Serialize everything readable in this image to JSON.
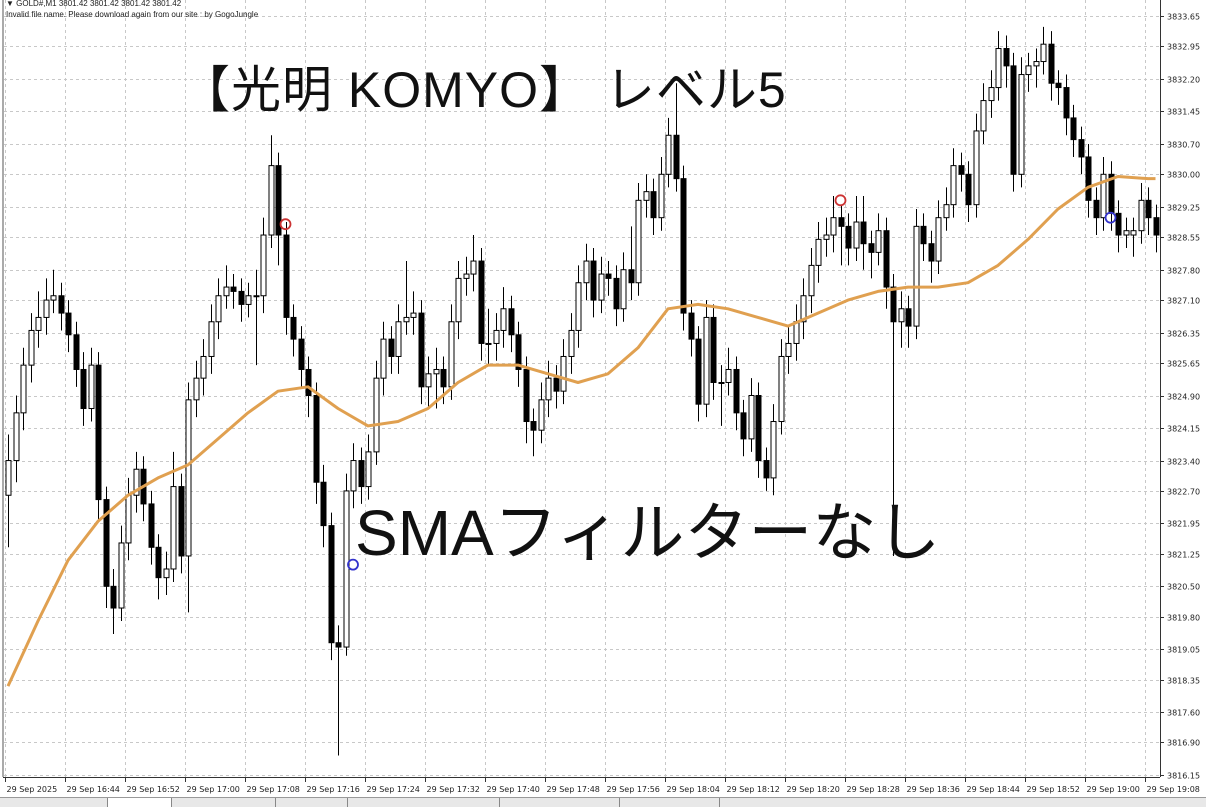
{
  "header": {
    "symbol_line": "▼ GOLD#,M1  3801.42 3801.42 3801.42 3801.42",
    "notice": "Invalid file name. Please download again from our site : by GogoJungle"
  },
  "overlay": {
    "title": "【光明 KOMYO】 レベル5",
    "subtitle": "SMAフィルターなし"
  },
  "colors": {
    "sma": "#e0a050",
    "bull_body": "#ffffff",
    "bear_body": "#000000",
    "sell_signal": "#cc3333",
    "buy_signal": "#3333cc",
    "grid": "#c8c8c8"
  },
  "chart_data": {
    "type": "candlestick",
    "symbol": "GOLD#",
    "timeframe": "M1",
    "grid": true,
    "ylim": [
      3816.15,
      3833.65
    ],
    "y_tick_labels": [
      "3833.65",
      "3832.95",
      "3832.20",
      "3831.45",
      "3830.70",
      "3830.00",
      "3829.25",
      "3828.55",
      "3827.80",
      "3827.10",
      "3826.35",
      "3825.65",
      "3824.90",
      "3824.15",
      "3823.40",
      "3822.70",
      "3821.95",
      "3821.25",
      "3820.50",
      "3819.80",
      "3819.05",
      "3818.35",
      "3817.60",
      "3816.90",
      "3816.15"
    ],
    "x_tick_labels": [
      "29 Sep 2025",
      "29 Sep 16:44",
      "29 Sep 16:52",
      "29 Sep 17:00",
      "29 Sep 17:08",
      "29 Sep 17:16",
      "29 Sep 17:24",
      "29 Sep 17:32",
      "29 Sep 17:40",
      "29 Sep 17:48",
      "29 Sep 17:56",
      "29 Sep 18:04",
      "29 Sep 18:12",
      "29 Sep 18:20",
      "29 Sep 18:28",
      "29 Sep 18:36",
      "29 Sep 18:44",
      "29 Sep 18:52",
      "29 Sep 19:00",
      "29 Sep 19:08"
    ],
    "first_candle_time": "16:36",
    "ohlc": [
      [
        3822.6,
        3824.0,
        3821.4,
        3823.4
      ],
      [
        3823.4,
        3824.9,
        3822.9,
        3824.5
      ],
      [
        3824.5,
        3826.0,
        3824.1,
        3825.6
      ],
      [
        3825.6,
        3826.8,
        3825.2,
        3826.4
      ],
      [
        3826.4,
        3827.3,
        3826.0,
        3826.7
      ],
      [
        3826.7,
        3827.6,
        3826.3,
        3827.1
      ],
      [
        3827.1,
        3827.8,
        3826.8,
        3827.2
      ],
      [
        3827.2,
        3827.5,
        3826.4,
        3826.8
      ],
      [
        3826.8,
        3827.1,
        3825.9,
        3826.3
      ],
      [
        3826.3,
        3826.6,
        3825.1,
        3825.5
      ],
      [
        3825.5,
        3825.9,
        3824.2,
        3824.6
      ],
      [
        3824.6,
        3826.0,
        3824.3,
        3825.6
      ],
      [
        3825.6,
        3825.9,
        3822.0,
        3822.5
      ],
      [
        3822.5,
        3822.8,
        3820.0,
        3820.5
      ],
      [
        3820.5,
        3820.9,
        3819.4,
        3820.0
      ],
      [
        3820.0,
        3821.9,
        3819.7,
        3821.5
      ],
      [
        3821.5,
        3823.0,
        3821.1,
        3822.6
      ],
      [
        3822.6,
        3823.6,
        3822.2,
        3823.2
      ],
      [
        3823.2,
        3823.5,
        3822.0,
        3822.4
      ],
      [
        3822.4,
        3822.7,
        3821.0,
        3821.4
      ],
      [
        3821.4,
        3821.7,
        3820.2,
        3820.7
      ],
      [
        3820.7,
        3821.3,
        3820.3,
        3820.9
      ],
      [
        3820.9,
        3823.6,
        3820.6,
        3822.8
      ],
      [
        3822.8,
        3823.1,
        3820.8,
        3821.2
      ],
      [
        3821.2,
        3825.2,
        3819.9,
        3824.8
      ],
      [
        3824.8,
        3825.7,
        3824.4,
        3825.3
      ],
      [
        3825.3,
        3826.2,
        3824.9,
        3825.8
      ],
      [
        3825.8,
        3827.0,
        3825.4,
        3826.6
      ],
      [
        3826.6,
        3827.6,
        3826.2,
        3827.2
      ],
      [
        3827.2,
        3827.9,
        3826.9,
        3827.4
      ],
      [
        3827.4,
        3827.7,
        3826.9,
        3827.3
      ],
      [
        3827.3,
        3827.6,
        3826.6,
        3827.0
      ],
      [
        3827.0,
        3827.5,
        3826.7,
        3827.2
      ],
      [
        3827.2,
        3827.8,
        3825.6,
        3827.2
      ],
      [
        3827.2,
        3829.0,
        3826.8,
        3828.6
      ],
      [
        3828.6,
        3830.9,
        3828.3,
        3830.2
      ],
      [
        3830.2,
        3830.5,
        3827.9,
        3828.6
      ],
      [
        3828.6,
        3828.9,
        3826.3,
        3826.7
      ],
      [
        3826.7,
        3827.0,
        3825.8,
        3826.2
      ],
      [
        3826.2,
        3826.5,
        3825.1,
        3825.5
      ],
      [
        3825.5,
        3825.8,
        3824.4,
        3824.9
      ],
      [
        3824.9,
        3825.2,
        3822.4,
        3822.9
      ],
      [
        3822.9,
        3823.3,
        3821.4,
        3821.9
      ],
      [
        3821.9,
        3822.2,
        3818.8,
        3819.2
      ],
      [
        3819.2,
        3819.6,
        3816.6,
        3819.1
      ],
      [
        3819.1,
        3823.1,
        3818.9,
        3822.7
      ],
      [
        3822.7,
        3823.8,
        3822.3,
        3823.4
      ],
      [
        3823.4,
        3823.7,
        3822.4,
        3822.8
      ],
      [
        3822.8,
        3824.0,
        3822.5,
        3823.6
      ],
      [
        3823.6,
        3825.7,
        3823.3,
        3825.3
      ],
      [
        3825.3,
        3826.6,
        3824.9,
        3826.2
      ],
      [
        3826.2,
        3826.5,
        3825.4,
        3825.8
      ],
      [
        3825.8,
        3827.0,
        3825.4,
        3826.6
      ],
      [
        3826.6,
        3828.0,
        3826.3,
        3826.7
      ],
      [
        3826.7,
        3827.3,
        3826.3,
        3826.8
      ],
      [
        3826.8,
        3827.1,
        3824.7,
        3825.1
      ],
      [
        3825.1,
        3825.8,
        3824.6,
        3825.4
      ],
      [
        3825.4,
        3826.0,
        3824.6,
        3825.5
      ],
      [
        3825.5,
        3825.8,
        3824.7,
        3825.1
      ],
      [
        3825.1,
        3827.0,
        3824.8,
        3826.6
      ],
      [
        3826.6,
        3828.0,
        3826.2,
        3827.6
      ],
      [
        3827.6,
        3828.1,
        3827.2,
        3827.7
      ],
      [
        3827.7,
        3828.6,
        3827.3,
        3828.0
      ],
      [
        3828.0,
        3828.3,
        3825.7,
        3826.1
      ],
      [
        3826.1,
        3826.9,
        3825.6,
        3826.1
      ],
      [
        3826.1,
        3826.8,
        3825.7,
        3826.4
      ],
      [
        3826.4,
        3827.4,
        3826.0,
        3826.9
      ],
      [
        3826.9,
        3827.2,
        3825.9,
        3826.3
      ],
      [
        3826.3,
        3826.6,
        3825.1,
        3825.5
      ],
      [
        3825.5,
        3825.8,
        3823.8,
        3824.3
      ],
      [
        3824.3,
        3824.6,
        3823.5,
        3824.1
      ],
      [
        3824.1,
        3825.2,
        3823.8,
        3824.8
      ],
      [
        3824.8,
        3825.7,
        3824.4,
        3825.3
      ],
      [
        3825.3,
        3825.6,
        3824.6,
        3825.0
      ],
      [
        3825.0,
        3826.2,
        3824.7,
        3825.8
      ],
      [
        3825.8,
        3826.8,
        3825.4,
        3826.4
      ],
      [
        3826.4,
        3827.9,
        3826.0,
        3827.5
      ],
      [
        3827.5,
        3828.4,
        3827.1,
        3828.0
      ],
      [
        3828.0,
        3828.3,
        3826.7,
        3827.1
      ],
      [
        3827.1,
        3828.1,
        3826.8,
        3827.7
      ],
      [
        3827.7,
        3828.0,
        3827.2,
        3827.6
      ],
      [
        3827.6,
        3827.9,
        3826.5,
        3826.9
      ],
      [
        3826.9,
        3828.2,
        3826.6,
        3827.8
      ],
      [
        3827.8,
        3828.8,
        3827.1,
        3827.5
      ],
      [
        3827.5,
        3829.8,
        3827.2,
        3829.4
      ],
      [
        3829.4,
        3830.0,
        3829.0,
        3829.6
      ],
      [
        3829.6,
        3829.9,
        3828.6,
        3829.0
      ],
      [
        3829.0,
        3830.4,
        3828.7,
        3830.0
      ],
      [
        3830.0,
        3831.3,
        3829.7,
        3830.9
      ],
      [
        3830.9,
        3832.1,
        3829.6,
        3829.9
      ],
      [
        3829.9,
        3830.2,
        3826.4,
        3826.8
      ],
      [
        3826.8,
        3827.1,
        3825.8,
        3826.2
      ],
      [
        3826.2,
        3826.5,
        3824.3,
        3824.7
      ],
      [
        3824.7,
        3827.1,
        3824.4,
        3826.7
      ],
      [
        3826.7,
        3827.0,
        3824.8,
        3825.2
      ],
      [
        3825.2,
        3825.6,
        3824.2,
        3825.2
      ],
      [
        3825.2,
        3826.0,
        3824.9,
        3825.5
      ],
      [
        3825.5,
        3825.8,
        3824.1,
        3824.5
      ],
      [
        3824.5,
        3824.8,
        3823.5,
        3823.9
      ],
      [
        3823.9,
        3825.3,
        3823.6,
        3824.9
      ],
      [
        3824.9,
        3825.2,
        3823.0,
        3823.4
      ],
      [
        3823.4,
        3823.7,
        3822.7,
        3823.0
      ],
      [
        3823.0,
        3824.7,
        3822.6,
        3824.3
      ],
      [
        3824.3,
        3826.2,
        3824.0,
        3825.8
      ],
      [
        3825.8,
        3826.5,
        3825.4,
        3826.1
      ],
      [
        3826.1,
        3827.0,
        3825.7,
        3826.6
      ],
      [
        3826.6,
        3827.6,
        3826.2,
        3827.2
      ],
      [
        3827.2,
        3828.3,
        3826.8,
        3827.9
      ],
      [
        3827.9,
        3828.9,
        3827.5,
        3828.5
      ],
      [
        3828.5,
        3829.0,
        3828.1,
        3828.6
      ],
      [
        3828.6,
        3829.5,
        3828.2,
        3829.0
      ],
      [
        3829.0,
        3829.3,
        3827.9,
        3828.8
      ],
      [
        3828.8,
        3829.1,
        3827.9,
        3828.3
      ],
      [
        3828.3,
        3829.5,
        3828.0,
        3828.9
      ],
      [
        3828.9,
        3829.5,
        3827.8,
        3828.4
      ],
      [
        3828.4,
        3828.7,
        3827.6,
        3828.2
      ],
      [
        3828.2,
        3829.1,
        3827.9,
        3828.7
      ],
      [
        3828.7,
        3829.0,
        3826.9,
        3827.4
      ],
      [
        3827.4,
        3827.7,
        3821.2,
        3826.6
      ],
      [
        3826.6,
        3827.3,
        3826.0,
        3826.9
      ],
      [
        3826.9,
        3827.2,
        3826.0,
        3826.5
      ],
      [
        3826.5,
        3829.2,
        3826.2,
        3828.8
      ],
      [
        3828.8,
        3829.1,
        3828.0,
        3828.4
      ],
      [
        3828.4,
        3828.7,
        3827.5,
        3828.0
      ],
      [
        3828.0,
        3829.4,
        3827.7,
        3829.0
      ],
      [
        3829.0,
        3829.7,
        3828.7,
        3829.3
      ],
      [
        3829.3,
        3830.6,
        3829.0,
        3830.2
      ],
      [
        3830.2,
        3830.5,
        3829.6,
        3830.0
      ],
      [
        3830.0,
        3830.3,
        3828.9,
        3829.3
      ],
      [
        3829.3,
        3831.4,
        3829.0,
        3831.0
      ],
      [
        3831.0,
        3832.1,
        3830.7,
        3831.7
      ],
      [
        3831.7,
        3832.4,
        3831.3,
        3832.0
      ],
      [
        3832.0,
        3833.3,
        3831.7,
        3832.9
      ],
      [
        3832.9,
        3833.2,
        3832.0,
        3832.5
      ],
      [
        3832.5,
        3832.8,
        3829.6,
        3830.0
      ],
      [
        3830.0,
        3832.7,
        3829.7,
        3832.3
      ],
      [
        3832.3,
        3832.8,
        3831.9,
        3832.5
      ],
      [
        3832.5,
        3832.9,
        3832.0,
        3832.6
      ],
      [
        3832.6,
        3833.4,
        3832.3,
        3833.0
      ],
      [
        3833.0,
        3833.3,
        3831.7,
        3832.1
      ],
      [
        3832.1,
        3832.4,
        3831.6,
        3832.0
      ],
      [
        3832.0,
        3832.3,
        3830.9,
        3831.3
      ],
      [
        3831.3,
        3831.6,
        3830.4,
        3830.8
      ],
      [
        3830.8,
        3831.1,
        3830.0,
        3830.4
      ],
      [
        3830.4,
        3830.7,
        3829.0,
        3829.4
      ],
      [
        3829.4,
        3829.7,
        3828.6,
        3829.0
      ],
      [
        3829.0,
        3830.4,
        3828.7,
        3830.0
      ],
      [
        3830.0,
        3830.3,
        3828.7,
        3829.1
      ],
      [
        3829.1,
        3829.4,
        3828.2,
        3828.6
      ],
      [
        3828.6,
        3829.0,
        3828.3,
        3828.7
      ],
      [
        3828.6,
        3829.0,
        3828.1,
        3828.7
      ],
      [
        3828.7,
        3829.8,
        3828.4,
        3829.4
      ],
      [
        3829.4,
        3829.7,
        3828.6,
        3829.0
      ],
      [
        3829.0,
        3829.3,
        3828.2,
        3828.6
      ]
    ],
    "sma": [
      [
        "16:36",
        3818.2
      ],
      [
        "16:40",
        3819.7
      ],
      [
        "16:44",
        3821.1
      ],
      [
        "16:48",
        3822.0
      ],
      [
        "16:52",
        3822.6
      ],
      [
        "16:56",
        3823.0
      ],
      [
        "17:00",
        3823.3
      ],
      [
        "17:04",
        3823.9
      ],
      [
        "17:08",
        3824.5
      ],
      [
        "17:12",
        3825.0
      ],
      [
        "17:16",
        3825.1
      ],
      [
        "17:20",
        3824.6
      ],
      [
        "17:24",
        3824.2
      ],
      [
        "17:28",
        3824.3
      ],
      [
        "17:32",
        3824.6
      ],
      [
        "17:36",
        3825.2
      ],
      [
        "17:40",
        3825.6
      ],
      [
        "17:44",
        3825.6
      ],
      [
        "17:48",
        3825.4
      ],
      [
        "17:52",
        3825.2
      ],
      [
        "17:56",
        3825.4
      ],
      [
        "18:00",
        3826.0
      ],
      [
        "18:04",
        3826.9
      ],
      [
        "18:08",
        3827.0
      ],
      [
        "18:12",
        3826.9
      ],
      [
        "18:16",
        3826.7
      ],
      [
        "18:20",
        3826.5
      ],
      [
        "18:24",
        3826.8
      ],
      [
        "18:28",
        3827.1
      ],
      [
        "18:32",
        3827.3
      ],
      [
        "18:36",
        3827.4
      ],
      [
        "18:40",
        3827.4
      ],
      [
        "18:44",
        3827.5
      ],
      [
        "18:48",
        3827.9
      ],
      [
        "18:52",
        3828.5
      ],
      [
        "18:56",
        3829.2
      ],
      [
        "19:00",
        3829.7
      ],
      [
        "19:04",
        3829.95
      ],
      [
        "19:08",
        3829.9
      ],
      [
        "19:09",
        3829.9
      ]
    ],
    "signals": [
      {
        "type": "sell",
        "time": "17:13",
        "price": 3828.85
      },
      {
        "type": "buy",
        "time": "17:22",
        "price": 3821.0
      },
      {
        "type": "sell",
        "time": "18:27",
        "price": 3829.4
      },
      {
        "type": "buy",
        "time": "19:03",
        "price": 3829.0
      }
    ]
  }
}
